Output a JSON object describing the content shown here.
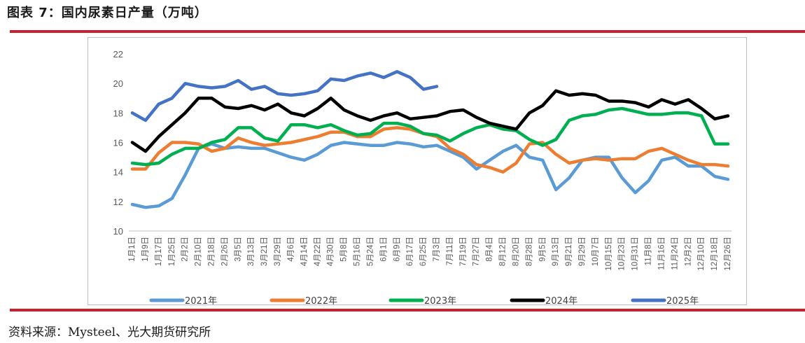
{
  "figure_title": "图表 7：国内尿素日产量（万吨）",
  "source": "资料来源：Mysteel、光大期货研究所",
  "colors": {
    "rule": "#c8202e"
  },
  "chart_data": {
    "type": "line",
    "title": "",
    "xlabel": "",
    "ylabel": "",
    "ylim": [
      10,
      22
    ],
    "yticks": [
      10,
      12,
      14,
      16,
      18,
      20,
      22
    ],
    "grid": false,
    "legend_position": "bottom",
    "x_ticks": [
      "1月1日",
      "1月9日",
      "1月17日",
      "1月25日",
      "2月2日",
      "2月10日",
      "2月18日",
      "2月26日",
      "3月5日",
      "3月13日",
      "3月21日",
      "3月29日",
      "4月6日",
      "4月14日",
      "4月22日",
      "4月30日",
      "5月8日",
      "5月16日",
      "5月24日",
      "6月1日",
      "6月9日",
      "6月17日",
      "6月25日",
      "7月3日",
      "7月11日",
      "7月19日",
      "7月27日",
      "8月4日",
      "8月12日",
      "8月20日",
      "8月28日",
      "9月5日",
      "9月13日",
      "9月21日",
      "9月29日",
      "10月7日",
      "10月15日",
      "10月23日",
      "10月31日",
      "11月8日",
      "11月16日",
      "11月24日",
      "12月2日",
      "12月10日",
      "12月18日",
      "12月26日"
    ],
    "series": [
      {
        "name": "2021年",
        "color": "#5b9bd5",
        "values": [
          11.8,
          11.6,
          11.7,
          12.2,
          13.8,
          15.6,
          15.9,
          15.6,
          15.7,
          15.6,
          15.6,
          15.3,
          15.0,
          14.8,
          15.2,
          15.8,
          16.0,
          15.9,
          15.8,
          15.8,
          16.0,
          15.9,
          15.7,
          15.8,
          15.4,
          15.0,
          14.2,
          14.8,
          15.4,
          15.8,
          15.0,
          14.8,
          12.8,
          13.6,
          14.8,
          15.0,
          15.0,
          13.6,
          12.6,
          13.4,
          14.8,
          15.0,
          14.4,
          14.4,
          13.7,
          13.5
        ]
      },
      {
        "name": "2022年",
        "color": "#ed7d31",
        "values": [
          14.2,
          14.2,
          15.3,
          16.0,
          16.0,
          15.9,
          15.4,
          15.6,
          16.3,
          16.0,
          15.8,
          15.9,
          16.0,
          16.2,
          16.4,
          16.7,
          16.7,
          16.4,
          16.4,
          16.9,
          17.0,
          16.9,
          16.6,
          16.4,
          15.6,
          15.2,
          14.5,
          14.3,
          14.0,
          14.6,
          15.9,
          16.0,
          15.2,
          14.6,
          14.8,
          14.9,
          14.8,
          14.9,
          14.9,
          15.4,
          15.6,
          15.2,
          14.8,
          14.5,
          14.5,
          14.4
        ]
      },
      {
        "name": "2023年",
        "color": "#00b050",
        "values": [
          14.6,
          14.5,
          14.6,
          15.2,
          15.6,
          15.6,
          16.0,
          16.2,
          17.0,
          17.0,
          16.3,
          16.1,
          17.2,
          17.2,
          17.0,
          17.2,
          16.8,
          16.5,
          16.6,
          17.3,
          17.3,
          17.1,
          16.6,
          16.5,
          16.1,
          16.6,
          17.0,
          17.2,
          16.9,
          16.8,
          16.2,
          15.8,
          16.2,
          17.5,
          17.8,
          17.9,
          18.2,
          18.3,
          18.1,
          17.9,
          17.9,
          18.0,
          18.0,
          17.8,
          15.9,
          15.9
        ]
      },
      {
        "name": "2024年",
        "color": "#000000",
        "values": [
          16.0,
          15.4,
          16.4,
          17.2,
          18.0,
          19.0,
          19.0,
          18.4,
          18.3,
          18.5,
          18.2,
          18.6,
          18.0,
          17.8,
          18.3,
          19.0,
          18.2,
          17.8,
          17.5,
          17.8,
          18.0,
          17.6,
          17.7,
          17.8,
          18.1,
          18.2,
          17.7,
          17.3,
          17.1,
          16.9,
          18.0,
          18.5,
          19.5,
          19.2,
          19.3,
          19.2,
          18.8,
          18.8,
          18.7,
          18.4,
          18.9,
          18.6,
          18.9,
          18.3,
          17.6,
          17.8
        ]
      },
      {
        "name": "2025年",
        "color": "#4472c4",
        "values": [
          18.0,
          17.5,
          18.6,
          19.0,
          20.0,
          19.8,
          19.7,
          19.8,
          20.2,
          19.6,
          19.8,
          19.3,
          19.2,
          19.3,
          19.5,
          20.3,
          20.2,
          20.5,
          20.7,
          20.4,
          20.8,
          20.4,
          19.6,
          19.8
        ]
      }
    ]
  }
}
